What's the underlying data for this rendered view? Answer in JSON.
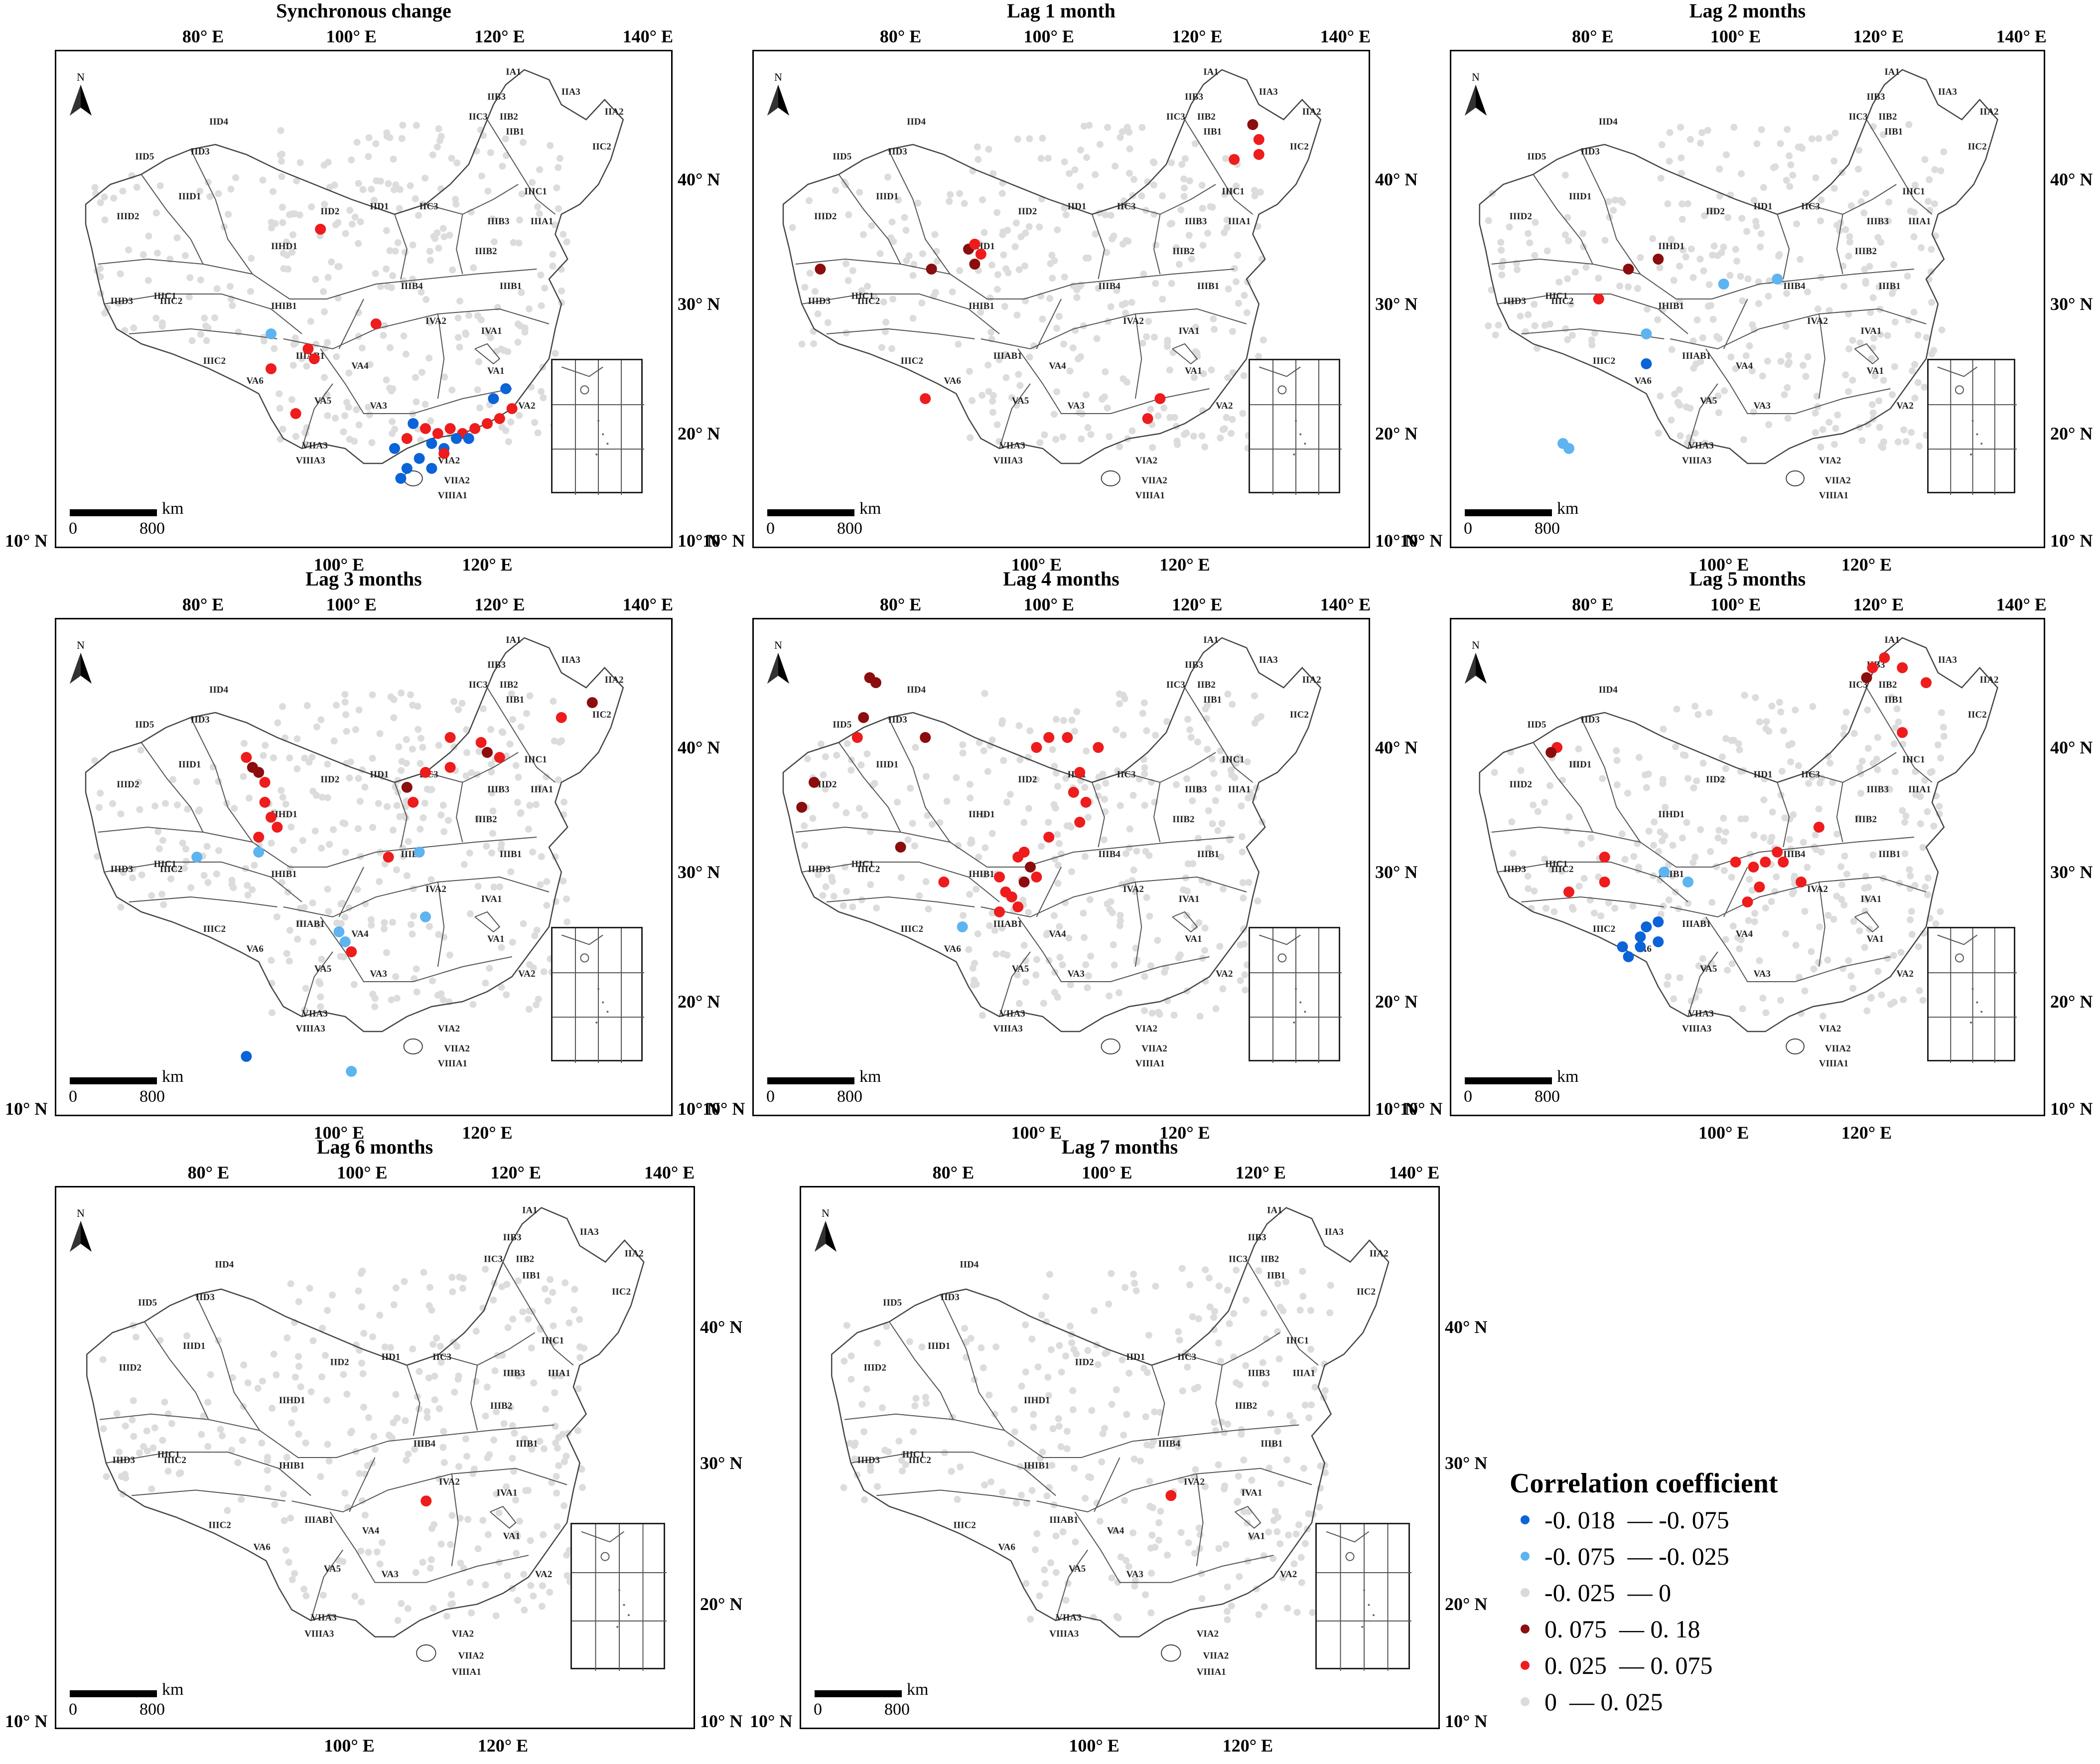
{
  "map": {
    "lon_ticks_top": [
      "80° E",
      "100° E",
      "120° E",
      "140° E"
    ],
    "lon_ticks_bottom": [
      "100° E",
      "120° E"
    ],
    "lat_ticks": [
      "40° N",
      "30° N",
      "20° N",
      "10° N"
    ],
    "north_label": "N",
    "scale_unit": "km",
    "scale_zero": "0",
    "scale_max": "800",
    "region_labels": [
      "IA1",
      "IIA3",
      "IIB3",
      "IIA2",
      "IIC3",
      "IIB2",
      "IIB1",
      "IID4",
      "IID3",
      "IID5",
      "IIC2",
      "IIIC1",
      "IIID1",
      "IID2",
      "IID1",
      "IIC3",
      "IIIB3",
      "IIIA1",
      "IIID2",
      "IIIB2",
      "IIHD1",
      "IIIB1",
      "IIIC1",
      "IIIB4",
      "IIID3",
      "IIIC2",
      "IHIB1",
      "IVA2",
      "IVA1",
      "IIIC2",
      "VA6",
      "IIIAB1",
      "VA4",
      "VA1",
      "VA5",
      "VA3",
      "VA2",
      "VIIA3",
      "VIA2",
      "VIIIA3",
      "VIIA2",
      "VIIIA1"
    ]
  },
  "colors": {
    "strong_negative": "#0b63d8",
    "negative": "#5db4f0",
    "weak_negative": "#d9d9d9",
    "strong_positive": "#8b0d0d",
    "positive": "#ee1c1c",
    "weak_positive": "#dcdcdc"
  },
  "panels": [
    {
      "title": "Synchronous change"
    },
    {
      "title": "Lag 1 month"
    },
    {
      "title": "Lag 2 months"
    },
    {
      "title": "Lag 3 months"
    },
    {
      "title": "Lag 4 months"
    },
    {
      "title": "Lag 5 months"
    },
    {
      "title": "Lag 6 months"
    },
    {
      "title": "Lag 7 months"
    }
  ],
  "legend": {
    "title": "Correlation coefficient",
    "items": [
      {
        "label": "-0. 018  — -0. 075",
        "color": "#0b63d8"
      },
      {
        "label": "-0. 075  — -0. 025",
        "color": "#5db4f0"
      },
      {
        "label": "-0. 025  — 0",
        "color": "#d9d9d9"
      },
      {
        "label": "0. 075  — 0. 18",
        "color": "#8b0d0d"
      },
      {
        "label": "0. 025  — 0. 075",
        "color": "#ee1c1c"
      },
      {
        "label": "0  — 0. 025",
        "color": "#dcdcdc"
      }
    ]
  }
}
